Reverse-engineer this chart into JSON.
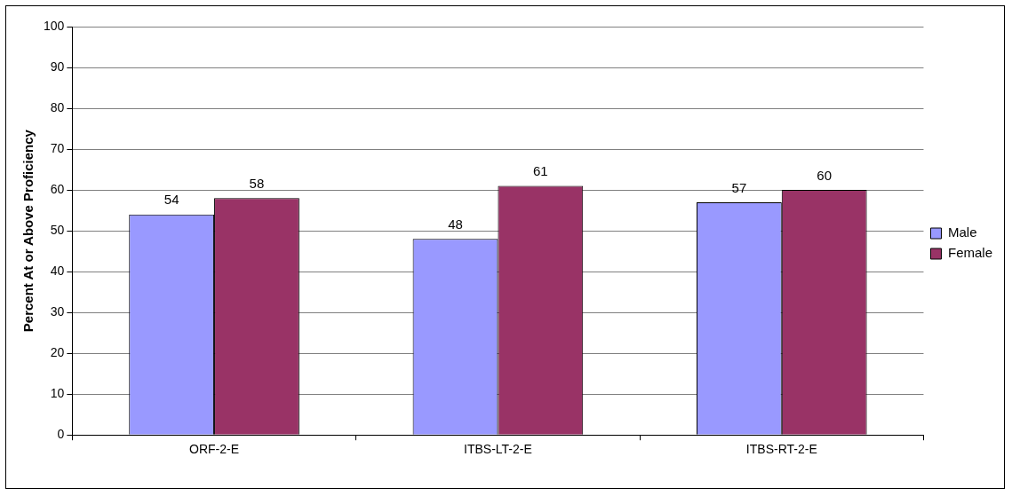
{
  "chart_data": {
    "type": "bar",
    "ylabel": "Percent At or Above Proficiency",
    "categories": [
      "ORF-2-E",
      "ITBS-LT-2-E",
      "ITBS-RT-2-E"
    ],
    "series": [
      {
        "name": "Male",
        "color": "#9999ff",
        "values": [
          54,
          48,
          57
        ]
      },
      {
        "name": "Female",
        "color": "#993366",
        "values": [
          58,
          61,
          60
        ]
      }
    ],
    "ylim": [
      0,
      100
    ],
    "yticks": [
      0,
      10,
      20,
      30,
      40,
      50,
      60,
      70,
      80,
      90,
      100
    ],
    "grid": "y",
    "legend": "right",
    "data_labels": true
  }
}
